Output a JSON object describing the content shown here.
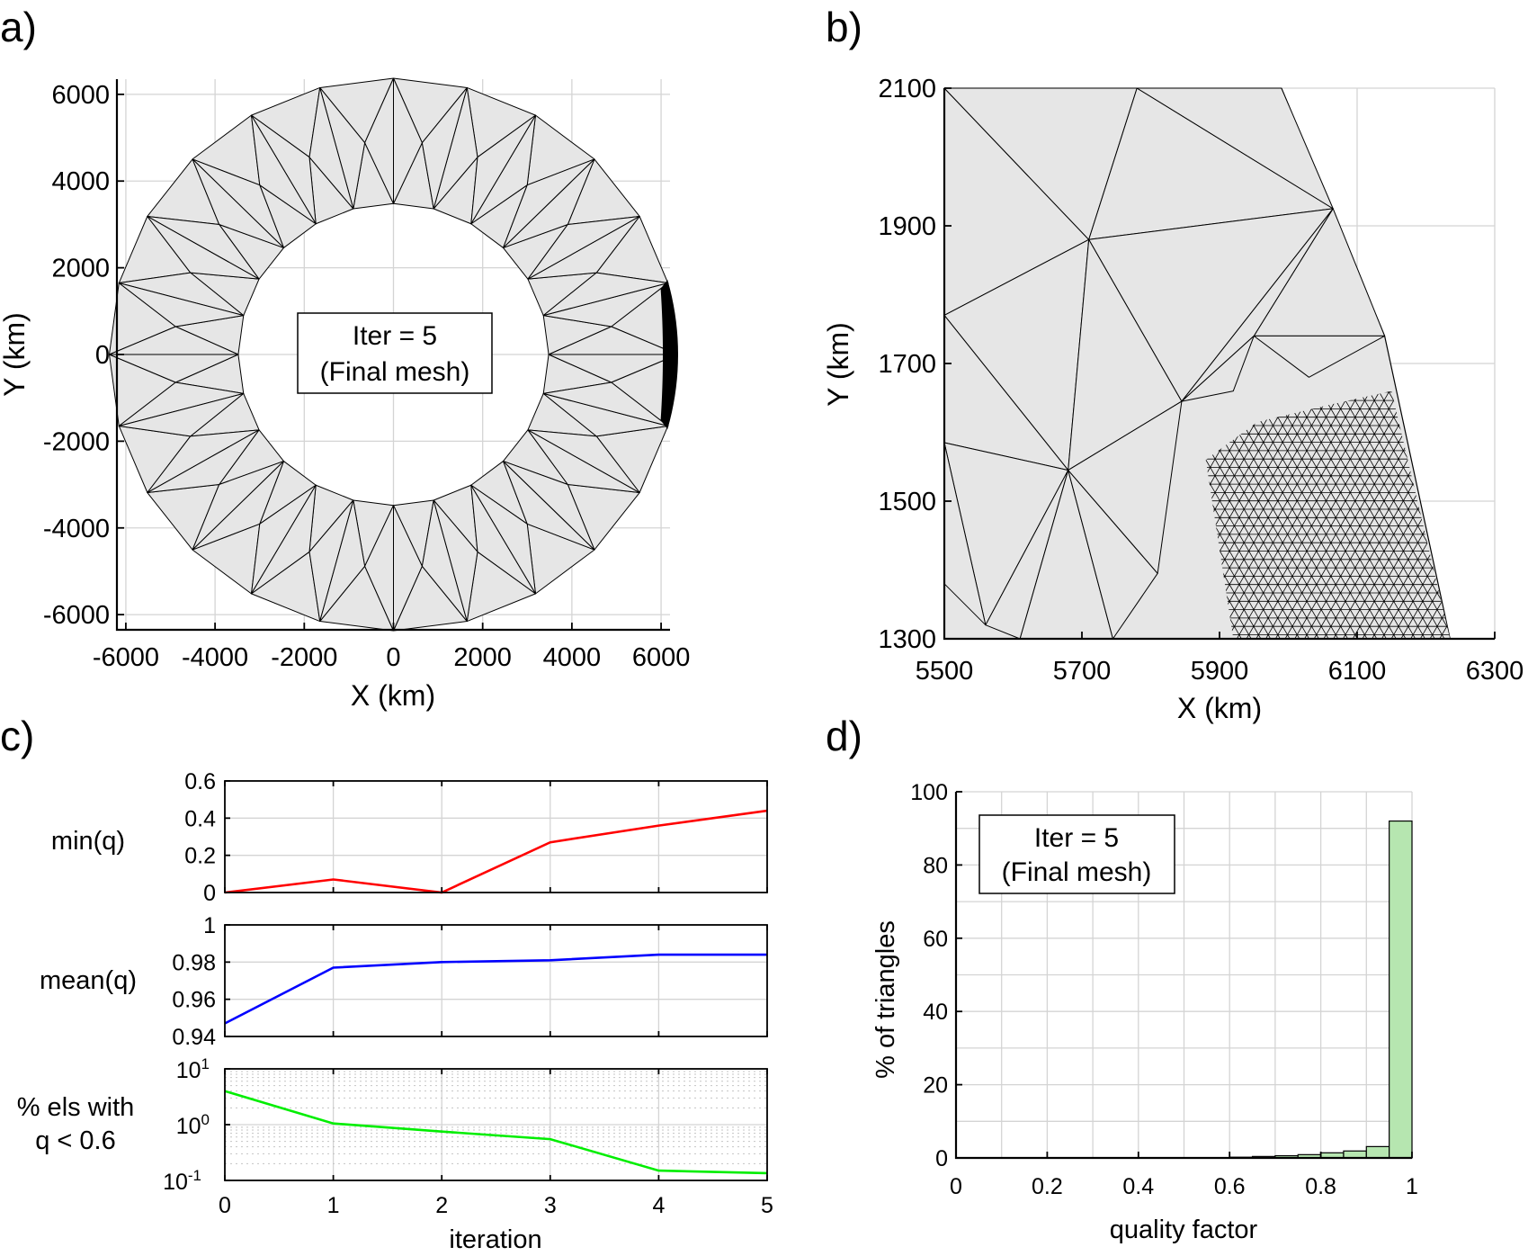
{
  "panels": {
    "a": {
      "label": "a)",
      "xlabel": "X (km)",
      "ylabel": "Y (km)",
      "xticks": [
        -6000,
        -4000,
        -2000,
        0,
        2000,
        4000,
        6000
      ],
      "yticks": [
        6000,
        4000,
        2000,
        0,
        -2000,
        -4000,
        -6000
      ],
      "xlim": [
        -6200,
        6200
      ],
      "ylim": [
        -6350,
        6350
      ],
      "outer_radius_km": 6371,
      "inner_radius_km": 3480,
      "refined_zone_x_km": [
        5850,
        6371
      ],
      "annotation": {
        "line1": "Iter = 5",
        "line2": "(Final mesh)"
      }
    },
    "b": {
      "label": "b)",
      "xlabel": "X (km)",
      "ylabel": "Y (km)",
      "xticks": [
        5500,
        5700,
        5900,
        6100,
        6300
      ],
      "yticks": [
        2100,
        1900,
        1700,
        1500,
        1300
      ],
      "xlim": [
        5500,
        6300
      ],
      "ylim": [
        1300,
        2100
      ]
    },
    "c": {
      "label": "c)",
      "xlabel": "iteration",
      "xticks": [
        "0",
        "1",
        "2",
        "3",
        "4",
        "5"
      ]
    },
    "d": {
      "label": "d)",
      "xlabel": "quality factor",
      "ylabel": "% of triangles",
      "annotation": {
        "line1": "Iter = 5",
        "line2": "(Final mesh)"
      }
    }
  },
  "chart_data": [
    {
      "panel": "c-top",
      "type": "line",
      "ylabel": "min(q)",
      "x": [
        0,
        1,
        2,
        3,
        4,
        5
      ],
      "values": [
        0.0,
        0.07,
        0.0,
        0.27,
        0.36,
        0.44
      ],
      "ylim": [
        0,
        0.6
      ],
      "yticks": [
        "0.6",
        "0.4",
        "0.2",
        "0"
      ],
      "color": "#ff0000",
      "grid": true
    },
    {
      "panel": "c-middle",
      "type": "line",
      "ylabel": "mean(q)",
      "x": [
        0,
        1,
        2,
        3,
        4,
        5
      ],
      "values": [
        0.947,
        0.977,
        0.98,
        0.981,
        0.984,
        0.984
      ],
      "ylim": [
        0.94,
        1.0
      ],
      "yticks": [
        "1",
        "0.98",
        "0.96",
        "0.94"
      ],
      "color": "#0000ff",
      "grid": true
    },
    {
      "panel": "c-bottom",
      "type": "line",
      "ylabel_line1": "% els with",
      "ylabel_line2": "q < 0.6",
      "yscale": "log",
      "x": [
        0,
        1,
        2,
        3,
        4,
        5
      ],
      "values": [
        4.0,
        1.05,
        0.75,
        0.55,
        0.15,
        0.135
      ],
      "ylim": [
        0.1,
        10
      ],
      "yticks": [
        {
          "base": "10",
          "exp": "1"
        },
        {
          "base": "10",
          "exp": "0"
        },
        {
          "base": "10",
          "exp": "-1"
        }
      ],
      "color": "#00ee00",
      "grid": true
    },
    {
      "panel": "d",
      "type": "bar",
      "xlabel": "quality factor",
      "ylabel": "% of triangles",
      "bin_edges": [
        0,
        0.05,
        0.1,
        0.15,
        0.2,
        0.25,
        0.3,
        0.35,
        0.4,
        0.45,
        0.5,
        0.55,
        0.6,
        0.65,
        0.7,
        0.75,
        0.8,
        0.85,
        0.9,
        0.95,
        1.0
      ],
      "values": [
        0,
        0,
        0,
        0,
        0,
        0,
        0,
        0,
        0,
        0,
        0,
        0.05,
        0.2,
        0.4,
        0.6,
        0.9,
        1.4,
        1.9,
        3.1,
        92
      ],
      "xlim": [
        0,
        1
      ],
      "ylim": [
        0,
        100
      ],
      "xticks": [
        "0",
        "0.2",
        "0.4",
        "0.6",
        "0.8",
        "1"
      ],
      "yticks": [
        "100",
        "80",
        "60",
        "40",
        "20",
        "0"
      ],
      "bar_color": "#b6e6b0",
      "grid": true
    }
  ]
}
